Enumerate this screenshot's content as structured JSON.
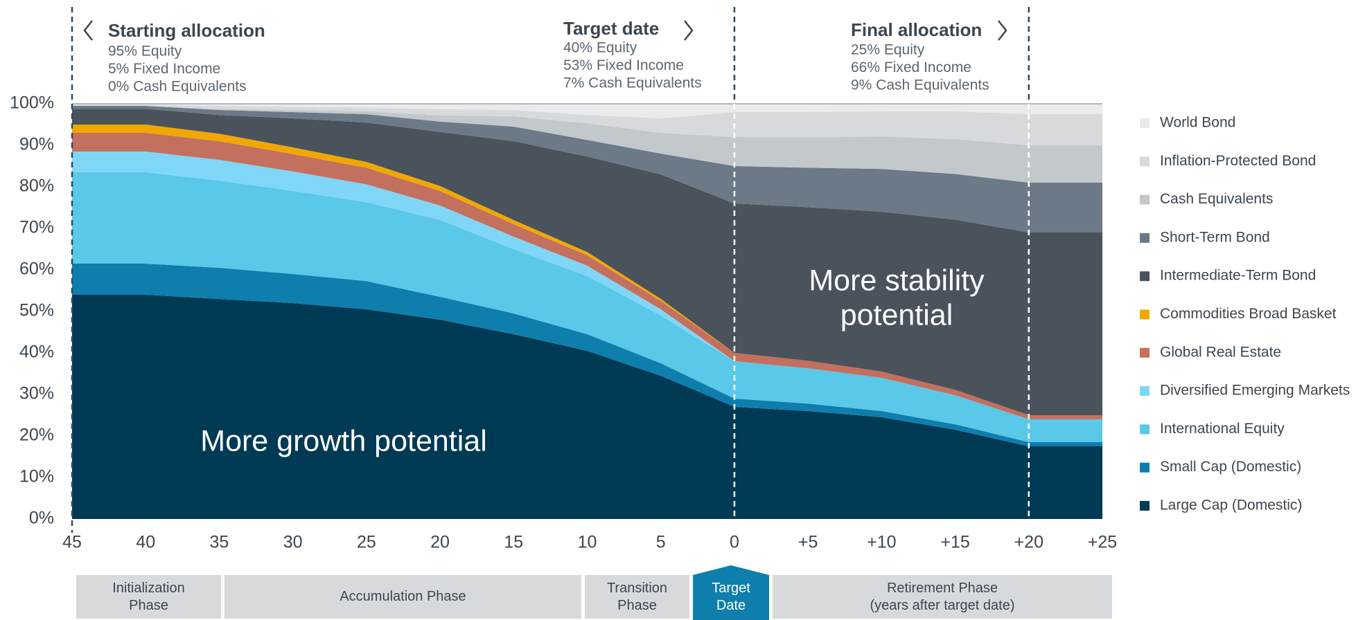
{
  "chart_data": {
    "type": "stacked-area",
    "x": [
      45,
      40,
      35,
      30,
      25,
      20,
      15,
      10,
      5,
      0,
      -5,
      -10,
      -15,
      -20,
      -25
    ],
    "xlim": [
      45,
      -25
    ],
    "xticks": [
      45,
      40,
      35,
      30,
      25,
      20,
      15,
      10,
      5,
      0,
      {
        "value": -5,
        "label": "+5"
      },
      {
        "value": -10,
        "label": "+10"
      },
      {
        "value": -15,
        "label": "+15"
      },
      {
        "value": -20,
        "label": "+20"
      },
      {
        "value": -25,
        "label": "+25"
      }
    ],
    "ylim": [
      0,
      100
    ],
    "yticks": [
      {
        "value": 0,
        "label": "0%"
      },
      {
        "value": 10,
        "label": "10%"
      },
      {
        "value": 20,
        "label": "20%"
      },
      {
        "value": 30,
        "label": "30%"
      },
      {
        "value": 40,
        "label": "40%"
      },
      {
        "value": 50,
        "label": "50%"
      },
      {
        "value": 60,
        "label": "60%"
      },
      {
        "value": 70,
        "label": "70%"
      },
      {
        "value": 80,
        "label": "80%"
      },
      {
        "value": 90,
        "label": "90%"
      },
      {
        "value": 100,
        "label": "100%"
      }
    ],
    "reference_lines": [
      45,
      0,
      -20
    ],
    "series": [
      {
        "name": "Large Cap (Domestic)",
        "color": "#003a55",
        "values": [
          54,
          54,
          53,
          52,
          50.5,
          48,
          44.5,
          40.5,
          34.5,
          27,
          26,
          24.5,
          21.5,
          17.5,
          17.5
        ]
      },
      {
        "name": "Small Cap (Domestic)",
        "color": "#0e7ead",
        "values": [
          7.5,
          7.5,
          7.5,
          7,
          6.8,
          5.5,
          5,
          4,
          3,
          2,
          1.8,
          1.5,
          1.3,
          1,
          1
        ]
      },
      {
        "name": "International Equity",
        "color": "#5ac8e8",
        "values": [
          22,
          22,
          21,
          20,
          19,
          18.5,
          15.5,
          14,
          11.5,
          9,
          8.5,
          8,
          7,
          5.5,
          5.5
        ]
      },
      {
        "name": "Diversified Emerging Markets",
        "color": "#80d6f6",
        "values": [
          5,
          5,
          5,
          4.7,
          4.3,
          3.5,
          3,
          2.5,
          1.5,
          0,
          0,
          0,
          0,
          0,
          0
        ]
      },
      {
        "name": "Global Real Estate",
        "color": "#c4705e",
        "values": [
          4.5,
          4.5,
          4.5,
          4.2,
          4,
          3.5,
          3,
          2.5,
          2,
          2,
          1.8,
          1.5,
          1.3,
          1,
          1
        ]
      },
      {
        "name": "Commodities Broad Basket",
        "color": "#f0a800",
        "values": [
          2,
          2,
          1.8,
          1.6,
          1.4,
          1.2,
          1,
          0.8,
          0.5,
          0,
          0,
          0,
          0,
          0,
          0
        ]
      },
      {
        "name": "Intermediate-Term Bond",
        "color": "#4a535c",
        "values": [
          3.8,
          3.8,
          4.5,
          7,
          9.5,
          13,
          19,
          23,
          30,
          36,
          37,
          38.5,
          41,
          44,
          44
        ]
      },
      {
        "name": "Short-Term Bond",
        "color": "#6b7a86",
        "values": [
          0.7,
          0.7,
          1.2,
          1.5,
          2,
          2.5,
          3.5,
          4,
          5,
          9,
          9.5,
          10.3,
          11,
          12,
          12
        ]
      },
      {
        "name": "Cash Equivalents",
        "color": "#c3c8cd",
        "values": [
          0,
          0,
          0.3,
          0.5,
          0.7,
          1.5,
          2.5,
          4,
          5,
          7,
          7.3,
          7.8,
          8.4,
          9,
          9
        ]
      },
      {
        "name": "Inflation-Protected Bond",
        "color": "#d7dadd",
        "values": [
          0.3,
          0.3,
          0.7,
          0.8,
          0.9,
          1.5,
          1.5,
          2,
          3.5,
          6,
          6.1,
          6.1,
          6.7,
          7.5,
          7.5
        ]
      },
      {
        "name": "World Bond",
        "color": "#e8eaec",
        "values": [
          0.2,
          0.2,
          0.5,
          0.7,
          0.9,
          1.3,
          1.5,
          2.7,
          3.5,
          2,
          2,
          1.8,
          1.8,
          2.5,
          2.5
        ]
      }
    ],
    "annotations": [
      "More growth potential",
      "More stability",
      "potential"
    ],
    "panels": [
      {
        "title": "Starting allocation",
        "lines": [
          "95% Equity",
          "5% Fixed Income",
          "0% Cash Equivalents"
        ]
      },
      {
        "title": "Target date",
        "lines": [
          "40% Equity",
          "53% Fixed Income",
          "7% Cash Equivalents"
        ]
      },
      {
        "title": "Final allocation",
        "lines": [
          "25% Equity",
          "66% Fixed Income",
          "9% Cash Equivalents"
        ]
      }
    ],
    "phases": [
      {
        "lines": [
          "Initialization",
          "Phase"
        ]
      },
      {
        "lines": [
          "Accumulation Phase"
        ]
      },
      {
        "lines": [
          "Transition",
          "Phase"
        ]
      },
      {
        "lines": [
          "Target",
          "Date"
        ]
      },
      {
        "lines": [
          "Retirement Phase",
          "(years after target date)"
        ]
      }
    ]
  }
}
